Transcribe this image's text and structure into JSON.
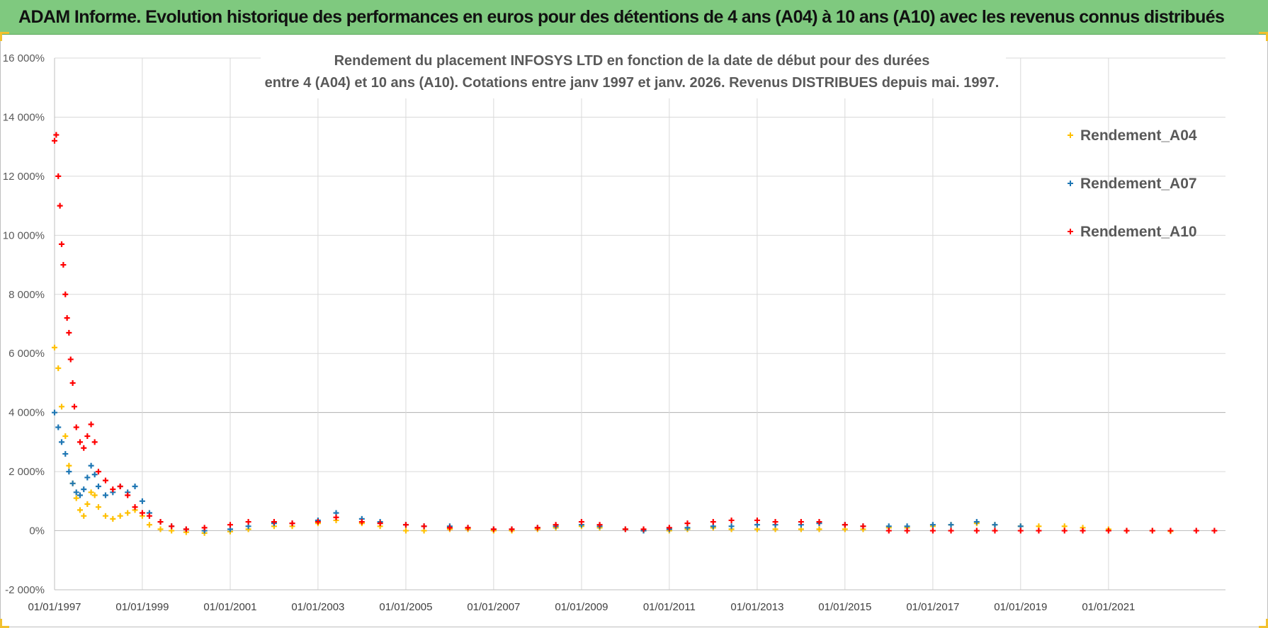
{
  "banner": {
    "title": "ADAM Informe. Evolution historique des performances en euros pour des détentions de 4 ans (A04) à 10 ans (A10) avec les revenus connus distribués"
  },
  "chart_data": {
    "type": "scatter",
    "title_line1": "Rendement du placement INFOSYS LTD en fonction de la date de début pour des durées",
    "title_line2": "entre 4 (A04) et 10 ans (A10).  Cotations entre janv 1997 et janv. 2026. Revenus DISTRIBUES depuis mai. 1997.",
    "xlabel": "",
    "ylabel": "",
    "xlim": [
      "1997-01-01",
      "2023-09-01"
    ],
    "ylim": [
      -2000,
      16000
    ],
    "y_ticks": [
      -2000,
      0,
      2000,
      4000,
      6000,
      8000,
      10000,
      12000,
      14000,
      16000
    ],
    "y_tick_labels": [
      "-2 000%",
      "0%",
      "2 000%",
      "4 000%",
      "6 000%",
      "8 000%",
      "10 000%",
      "12 000%",
      "14 000%",
      "16 000%"
    ],
    "x_ticks": [
      "1997-01-01",
      "1999-01-01",
      "2001-01-01",
      "2003-01-01",
      "2005-01-01",
      "2007-01-01",
      "2009-01-01",
      "2011-01-01",
      "2013-01-01",
      "2015-01-01",
      "2017-01-01",
      "2019-01-01",
      "2021-01-01"
    ],
    "x_tick_labels": [
      "01/01/1997",
      "01/01/1999",
      "01/01/2001",
      "01/01/2003",
      "01/01/2005",
      "01/01/2007",
      "01/01/2009",
      "01/01/2011",
      "01/01/2013",
      "01/01/2015",
      "01/01/2017",
      "01/01/2019",
      "01/01/2021"
    ],
    "grid": true,
    "legend_position": "top-right",
    "marker": "+",
    "series": [
      {
        "name": "Rendement_A04",
        "color": "#ffc000",
        "points": [
          [
            "1997-01-01",
            6200
          ],
          [
            "1997-02-01",
            5500
          ],
          [
            "1997-03-01",
            4200
          ],
          [
            "1997-04-01",
            3200
          ],
          [
            "1997-05-01",
            2200
          ],
          [
            "1997-06-01",
            1600
          ],
          [
            "1997-07-01",
            1100
          ],
          [
            "1997-08-01",
            700
          ],
          [
            "1997-09-01",
            500
          ],
          [
            "1997-10-01",
            900
          ],
          [
            "1997-11-01",
            1300
          ],
          [
            "1997-12-01",
            1200
          ],
          [
            "1998-01-01",
            800
          ],
          [
            "1998-03-01",
            500
          ],
          [
            "1998-05-01",
            400
          ],
          [
            "1998-07-01",
            500
          ],
          [
            "1998-09-01",
            600
          ],
          [
            "1998-11-01",
            700
          ],
          [
            "1999-01-01",
            500
          ],
          [
            "1999-03-01",
            200
          ],
          [
            "1999-06-01",
            50
          ],
          [
            "1999-09-01",
            0
          ],
          [
            "2000-01-01",
            -50
          ],
          [
            "2000-06-01",
            -80
          ],
          [
            "2001-01-01",
            -30
          ],
          [
            "2001-06-01",
            50
          ],
          [
            "2002-01-01",
            150
          ],
          [
            "2002-06-01",
            150
          ],
          [
            "2003-01-01",
            250
          ],
          [
            "2003-06-01",
            350
          ],
          [
            "2004-01-01",
            250
          ],
          [
            "2004-06-01",
            150
          ],
          [
            "2005-01-01",
            0
          ],
          [
            "2005-06-01",
            0
          ],
          [
            "2006-01-01",
            50
          ],
          [
            "2006-06-01",
            50
          ],
          [
            "2007-01-01",
            0
          ],
          [
            "2007-06-01",
            0
          ],
          [
            "2008-01-01",
            50
          ],
          [
            "2008-06-01",
            100
          ],
          [
            "2009-01-01",
            150
          ],
          [
            "2009-06-01",
            100
          ],
          [
            "2010-01-01",
            50
          ],
          [
            "2010-06-01",
            0
          ],
          [
            "2011-01-01",
            0
          ],
          [
            "2011-06-01",
            50
          ],
          [
            "2012-01-01",
            100
          ],
          [
            "2012-06-01",
            50
          ],
          [
            "2013-01-01",
            50
          ],
          [
            "2013-06-01",
            50
          ],
          [
            "2014-01-01",
            50
          ],
          [
            "2014-06-01",
            50
          ],
          [
            "2015-01-01",
            50
          ],
          [
            "2015-06-01",
            50
          ],
          [
            "2016-01-01",
            100
          ],
          [
            "2016-06-01",
            100
          ],
          [
            "2017-01-01",
            150
          ],
          [
            "2017-06-01",
            200
          ],
          [
            "2018-01-01",
            250
          ],
          [
            "2018-06-01",
            200
          ],
          [
            "2019-01-01",
            150
          ],
          [
            "2019-06-01",
            150
          ],
          [
            "2020-01-01",
            150
          ],
          [
            "2020-06-01",
            100
          ],
          [
            "2021-01-01",
            50
          ],
          [
            "2021-06-01",
            0
          ],
          [
            "2022-01-01",
            0
          ],
          [
            "2022-06-01",
            -20
          ]
        ]
      },
      {
        "name": "Rendement_A07",
        "color": "#1f77b4",
        "points": [
          [
            "1997-01-01",
            4000
          ],
          [
            "1997-02-01",
            3500
          ],
          [
            "1997-03-01",
            3000
          ],
          [
            "1997-04-01",
            2600
          ],
          [
            "1997-05-01",
            2000
          ],
          [
            "1997-06-01",
            1600
          ],
          [
            "1997-07-01",
            1300
          ],
          [
            "1997-08-01",
            1200
          ],
          [
            "1997-09-01",
            1400
          ],
          [
            "1997-10-01",
            1800
          ],
          [
            "1997-11-01",
            2200
          ],
          [
            "1997-12-01",
            1900
          ],
          [
            "1998-01-01",
            1500
          ],
          [
            "1998-03-01",
            1200
          ],
          [
            "1998-05-01",
            1300
          ],
          [
            "1998-07-01",
            1500
          ],
          [
            "1998-09-01",
            1300
          ],
          [
            "1998-11-01",
            1500
          ],
          [
            "1999-01-01",
            1000
          ],
          [
            "1999-03-01",
            600
          ],
          [
            "1999-06-01",
            300
          ],
          [
            "1999-09-01",
            150
          ],
          [
            "2000-01-01",
            50
          ],
          [
            "2000-06-01",
            0
          ],
          [
            "2001-01-01",
            50
          ],
          [
            "2001-06-01",
            150
          ],
          [
            "2002-01-01",
            250
          ],
          [
            "2002-06-01",
            250
          ],
          [
            "2003-01-01",
            350
          ],
          [
            "2003-06-01",
            600
          ],
          [
            "2004-01-01",
            400
          ],
          [
            "2004-06-01",
            300
          ],
          [
            "2005-01-01",
            200
          ],
          [
            "2005-06-01",
            150
          ],
          [
            "2006-01-01",
            150
          ],
          [
            "2006-06-01",
            100
          ],
          [
            "2007-01-01",
            50
          ],
          [
            "2007-06-01",
            50
          ],
          [
            "2008-01-01",
            100
          ],
          [
            "2008-06-01",
            150
          ],
          [
            "2009-01-01",
            200
          ],
          [
            "2009-06-01",
            150
          ],
          [
            "2010-01-01",
            50
          ],
          [
            "2010-06-01",
            0
          ],
          [
            "2011-01-01",
            50
          ],
          [
            "2011-06-01",
            100
          ],
          [
            "2012-01-01",
            150
          ],
          [
            "2012-06-01",
            150
          ],
          [
            "2013-01-01",
            200
          ],
          [
            "2013-06-01",
            200
          ],
          [
            "2014-01-01",
            200
          ],
          [
            "2014-06-01",
            250
          ],
          [
            "2015-01-01",
            200
          ],
          [
            "2015-06-01",
            150
          ],
          [
            "2016-01-01",
            150
          ],
          [
            "2016-06-01",
            150
          ],
          [
            "2017-01-01",
            200
          ],
          [
            "2017-06-01",
            200
          ],
          [
            "2018-01-01",
            300
          ],
          [
            "2018-06-01",
            200
          ],
          [
            "2019-01-01",
            150
          ]
        ]
      },
      {
        "name": "Rendement_A10",
        "color": "#ff0000",
        "points": [
          [
            "1997-01-01",
            13200
          ],
          [
            "1997-01-15",
            13400
          ],
          [
            "1997-02-01",
            12000
          ],
          [
            "1997-02-15",
            11000
          ],
          [
            "1997-03-01",
            9700
          ],
          [
            "1997-03-15",
            9000
          ],
          [
            "1997-04-01",
            8000
          ],
          [
            "1997-04-15",
            7200
          ],
          [
            "1997-05-01",
            6700
          ],
          [
            "1997-05-15",
            5800
          ],
          [
            "1997-06-01",
            5000
          ],
          [
            "1997-06-15",
            4200
          ],
          [
            "1997-07-01",
            3500
          ],
          [
            "1997-08-01",
            3000
          ],
          [
            "1997-09-01",
            2800
          ],
          [
            "1997-10-01",
            3200
          ],
          [
            "1997-11-01",
            3600
          ],
          [
            "1997-12-01",
            3000
          ],
          [
            "1998-01-01",
            2000
          ],
          [
            "1998-03-01",
            1700
          ],
          [
            "1998-05-01",
            1400
          ],
          [
            "1998-07-01",
            1500
          ],
          [
            "1998-09-01",
            1200
          ],
          [
            "1998-11-01",
            800
          ],
          [
            "1999-01-01",
            600
          ],
          [
            "1999-03-01",
            500
          ],
          [
            "1999-06-01",
            300
          ],
          [
            "1999-09-01",
            150
          ],
          [
            "2000-01-01",
            50
          ],
          [
            "2000-06-01",
            100
          ],
          [
            "2001-01-01",
            200
          ],
          [
            "2001-06-01",
            300
          ],
          [
            "2002-01-01",
            300
          ],
          [
            "2002-06-01",
            250
          ],
          [
            "2003-01-01",
            300
          ],
          [
            "2003-06-01",
            450
          ],
          [
            "2004-01-01",
            300
          ],
          [
            "2004-06-01",
            250
          ],
          [
            "2005-01-01",
            200
          ],
          [
            "2005-06-01",
            150
          ],
          [
            "2006-01-01",
            100
          ],
          [
            "2006-06-01",
            100
          ],
          [
            "2007-01-01",
            50
          ],
          [
            "2007-06-01",
            50
          ],
          [
            "2008-01-01",
            100
          ],
          [
            "2008-06-01",
            200
          ],
          [
            "2009-01-01",
            300
          ],
          [
            "2009-06-01",
            200
          ],
          [
            "2010-01-01",
            50
          ],
          [
            "2010-06-01",
            50
          ],
          [
            "2011-01-01",
            100
          ],
          [
            "2011-06-01",
            250
          ],
          [
            "2012-01-01",
            300
          ],
          [
            "2012-06-01",
            350
          ],
          [
            "2013-01-01",
            350
          ],
          [
            "2013-06-01",
            300
          ],
          [
            "2014-01-01",
            300
          ],
          [
            "2014-06-01",
            300
          ],
          [
            "2015-01-01",
            200
          ],
          [
            "2015-06-01",
            150
          ],
          [
            "2016-01-01",
            0
          ],
          [
            "2016-06-01",
            0
          ],
          [
            "2017-01-01",
            0
          ],
          [
            "2017-06-01",
            0
          ],
          [
            "2018-01-01",
            0
          ],
          [
            "2018-06-01",
            0
          ],
          [
            "2019-01-01",
            0
          ],
          [
            "2019-06-01",
            0
          ],
          [
            "2020-01-01",
            0
          ],
          [
            "2020-06-01",
            0
          ],
          [
            "2021-01-01",
            0
          ],
          [
            "2021-06-01",
            0
          ],
          [
            "2022-01-01",
            0
          ],
          [
            "2022-06-01",
            0
          ],
          [
            "2023-01-01",
            0
          ],
          [
            "2023-06-01",
            0
          ]
        ]
      }
    ]
  }
}
